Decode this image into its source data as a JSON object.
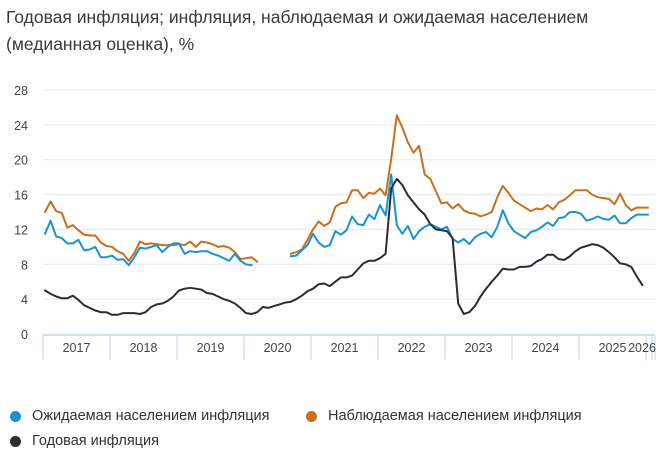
{
  "title": "Годовая инфляция; инфляция, наблюдаемая и ожидаемая населением (медианная оценка), %",
  "chart_data": {
    "type": "line",
    "title": "Годовая инфляция; инфляция, наблюдаемая и ожидаемая населением (медианная оценка), %",
    "x_start": "2017-01",
    "x_frequency": "monthly",
    "year_labels": [
      "2017",
      "2018",
      "2019",
      "2020",
      "2021",
      "2022",
      "2023",
      "2024",
      "2025",
      "2026"
    ],
    "ylim": [
      0,
      28
    ],
    "y_ticks": [
      0,
      4,
      8,
      12,
      16,
      20,
      24,
      28
    ],
    "grid": true,
    "legend": "bottom",
    "series": [
      {
        "name": "Ожидаемая населением инфляция",
        "color": "#1a93cf",
        "values": [
          11.5,
          13.0,
          11.2,
          11.0,
          10.4,
          10.4,
          10.8,
          9.6,
          9.7,
          10.0,
          8.8,
          8.8,
          9.0,
          8.5,
          8.6,
          7.9,
          8.8,
          9.9,
          9.8,
          10.0,
          10.2,
          9.4,
          10.0,
          10.4,
          10.4,
          9.2,
          9.5,
          9.4,
          9.5,
          9.5,
          9.2,
          9.0,
          8.7,
          8.4,
          9.2,
          8.4,
          8.0,
          7.9,
          null,
          null,
          null,
          null,
          null,
          null,
          8.9,
          9.0,
          9.6,
          10.2,
          11.5,
          10.5,
          10.0,
          10.2,
          11.8,
          11.4,
          11.9,
          13.5,
          12.6,
          12.5,
          13.7,
          13.2,
          14.8,
          13.6,
          18.3,
          12.5,
          11.5,
          12.4,
          10.9,
          11.8,
          12.3,
          12.6,
          12.3,
          12.0,
          12.3,
          10.9,
          10.5,
          10.9,
          10.3,
          11.1,
          11.5,
          11.7,
          11.1,
          12.3,
          14.2,
          12.7,
          11.8,
          11.4,
          11.0,
          11.7,
          11.9,
          12.3,
          12.8,
          12.4,
          13.3,
          13.4,
          14.0,
          14.0,
          13.8,
          13.0,
          13.2,
          13.5,
          13.2,
          13.1,
          13.6,
          12.7,
          12.7,
          13.3,
          13.7,
          13.7,
          13.7
        ]
      },
      {
        "name": "Наблюдаемая населением инфляция",
        "color": "#c8701e",
        "values": [
          14.0,
          15.2,
          14.1,
          13.9,
          12.2,
          12.5,
          11.9,
          11.4,
          11.3,
          11.3,
          10.5,
          10.1,
          10.0,
          9.5,
          9.2,
          8.4,
          9.3,
          10.6,
          10.3,
          10.4,
          10.3,
          10.2,
          10.2,
          10.2,
          10.3,
          10.2,
          10.6,
          10.0,
          10.6,
          10.5,
          10.3,
          10.0,
          10.1,
          9.9,
          9.4,
          8.6,
          8.7,
          8.8,
          8.3,
          null,
          null,
          null,
          null,
          null,
          9.2,
          9.4,
          9.7,
          10.8,
          12.0,
          12.9,
          12.4,
          12.8,
          14.6,
          15.0,
          15.1,
          16.5,
          16.5,
          15.6,
          16.2,
          16.1,
          16.7,
          15.9,
          20.1,
          25.1,
          23.7,
          22.0,
          20.8,
          21.6,
          18.3,
          17.8,
          16.4,
          15.0,
          15.1,
          14.4,
          14.9,
          14.2,
          13.9,
          13.8,
          13.5,
          13.7,
          14.0,
          15.7,
          17.0,
          16.2,
          15.3,
          14.9,
          14.5,
          14.1,
          14.4,
          14.3,
          14.8,
          14.3,
          15.1,
          15.4,
          15.9,
          16.5,
          16.5,
          16.5,
          16.0,
          15.7,
          15.6,
          15.5,
          14.9,
          16.1,
          14.8,
          14.2,
          14.5,
          14.5,
          14.5
        ]
      },
      {
        "name": "Годовая инфляция",
        "color": "#2b2d33",
        "values": [
          5.0,
          4.6,
          4.3,
          4.1,
          4.1,
          4.4,
          3.9,
          3.3,
          3.0,
          2.7,
          2.5,
          2.5,
          2.2,
          2.2,
          2.4,
          2.4,
          2.4,
          2.3,
          2.5,
          3.1,
          3.4,
          3.5,
          3.8,
          4.3,
          5.0,
          5.2,
          5.3,
          5.2,
          5.1,
          4.7,
          4.6,
          4.3,
          4.0,
          3.8,
          3.5,
          3.0,
          2.4,
          2.3,
          2.5,
          3.1,
          3.0,
          3.2,
          3.4,
          3.6,
          3.7,
          4.0,
          4.4,
          4.9,
          5.2,
          5.7,
          5.8,
          5.5,
          6.0,
          6.5,
          6.5,
          6.7,
          7.4,
          8.1,
          8.4,
          8.4,
          8.7,
          9.2,
          16.7,
          17.8,
          17.1,
          15.9,
          15.1,
          14.3,
          13.7,
          12.6,
          12.0,
          11.9,
          11.8,
          11.0,
          3.5,
          2.3,
          2.5,
          3.2,
          4.3,
          5.2,
          6.0,
          6.7,
          7.5,
          7.4,
          7.4,
          7.7,
          7.7,
          7.8,
          8.3,
          8.6,
          9.1,
          9.1,
          8.6,
          8.5,
          8.9,
          9.5,
          9.9,
          10.1,
          10.3,
          10.2,
          9.9,
          9.4,
          8.8,
          8.1,
          8.0,
          7.7,
          6.6,
          5.6
        ]
      }
    ]
  }
}
